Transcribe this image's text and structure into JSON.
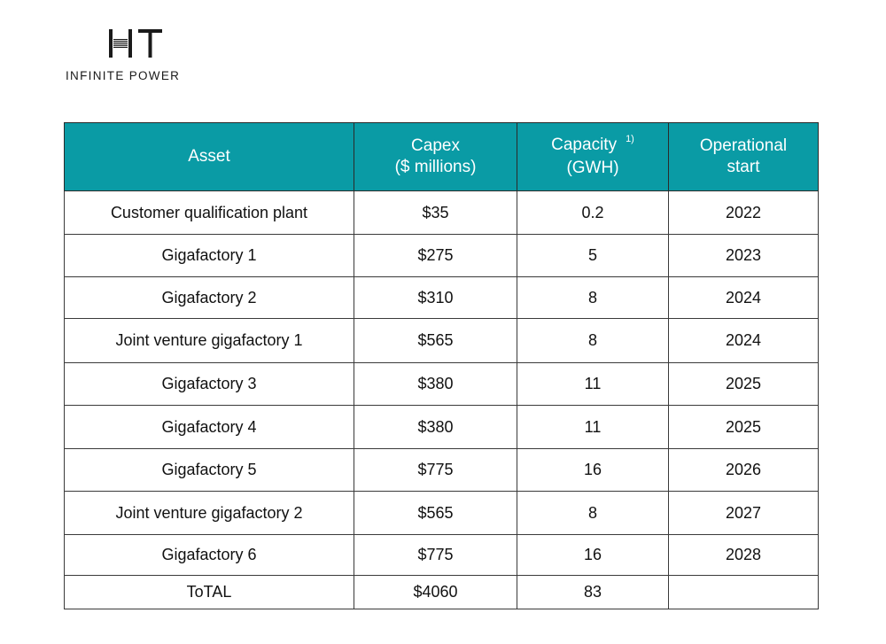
{
  "logo": {
    "mark": "HT",
    "tagline": "INFINITE POWER"
  },
  "table": {
    "headers": {
      "asset": "Asset",
      "capex": [
        "Capex",
        "($ millions)"
      ],
      "capacity": [
        "Capacity",
        "(GWH)"
      ],
      "capacity_note": "1)",
      "operational": [
        "Operational",
        "start"
      ]
    },
    "rows": [
      {
        "asset": "Customer qualification plant",
        "capex": "$35",
        "capacity": "0.2",
        "start": "2022"
      },
      {
        "asset": "Gigafactory 1",
        "capex": "$275",
        "capacity": "5",
        "start": "2023"
      },
      {
        "asset": "Gigafactory 2",
        "capex": "$310",
        "capacity": "8",
        "start": "2024"
      },
      {
        "asset": "Joint venture gigafactory 1",
        "capex": "$565",
        "capacity": "8",
        "start": "2024"
      },
      {
        "asset": "Gigafactory 3",
        "capex": "$380",
        "capacity": "11",
        "start": "2025"
      },
      {
        "asset": "Gigafactory 4",
        "capex": "$380",
        "capacity": "11",
        "start": "2025"
      },
      {
        "asset": "Gigafactory 5",
        "capex": "$775",
        "capacity": "16",
        "start": "2026"
      },
      {
        "asset": "Joint venture gigafactory 2",
        "capex": "$565",
        "capacity": "8",
        "start": "2027"
      },
      {
        "asset": "Gigafactory 6",
        "capex": "$775",
        "capacity": "16",
        "start": "2028"
      }
    ],
    "total": {
      "asset": "ToTAL",
      "capex": "$4060",
      "capacity": "83",
      "start": ""
    }
  },
  "colors": {
    "header_bg": "#0a9ba5",
    "header_text": "#ffffff",
    "border": "#3a3a3a"
  }
}
